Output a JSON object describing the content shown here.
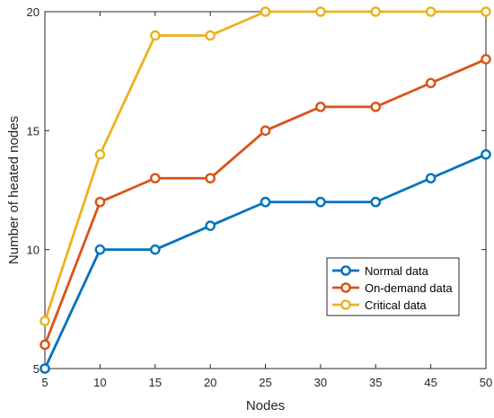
{
  "chart_data": {
    "type": "line",
    "xlabel": "Nodes",
    "ylabel": "Number of heated nodes",
    "x": [
      5,
      10,
      15,
      20,
      25,
      30,
      35,
      45,
      50
    ],
    "x_tick_labels": [
      "5",
      "10",
      "15",
      "20",
      "25",
      "30",
      "35",
      "45",
      "50"
    ],
    "y_ticks": [
      5,
      10,
      15,
      20
    ],
    "ylim": [
      5,
      20
    ],
    "grid": false,
    "legend_position": "lower-right",
    "series": [
      {
        "name": "Normal data",
        "color": "#0072BD",
        "values": [
          5,
          10,
          10,
          11,
          12,
          12,
          12,
          13,
          14
        ]
      },
      {
        "name": "On-demand data",
        "color": "#D95319",
        "values": [
          6,
          12,
          13,
          13,
          15,
          16,
          16,
          17,
          18
        ]
      },
      {
        "name": "Critical data",
        "color": "#EDB120",
        "values": [
          7,
          14,
          19,
          19,
          20,
          20,
          20,
          20,
          20
        ]
      }
    ]
  }
}
